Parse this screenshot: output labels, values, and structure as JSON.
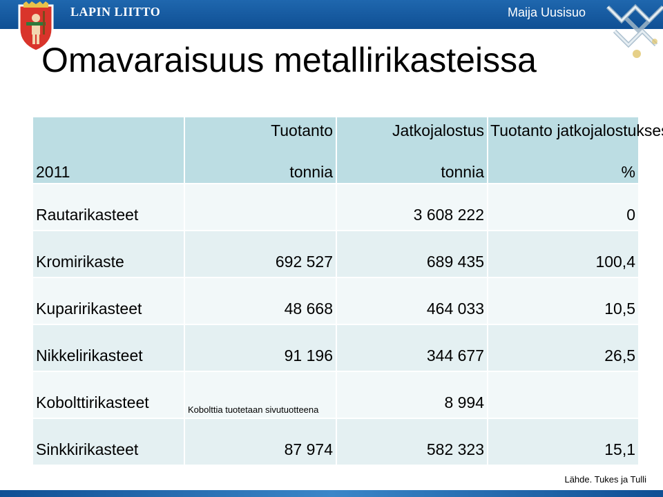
{
  "header": {
    "brand": "LAPIN LIITTO",
    "presenter": "Maija Uusisuo"
  },
  "slide": {
    "title": "Omavaraisuus metallirikasteissa",
    "table": {
      "year": "2011",
      "columns": [
        {
          "title": "Tuotanto",
          "unit": "tonnia"
        },
        {
          "title": "Jatkojalostus",
          "unit": "tonnia"
        },
        {
          "title": "Tuotanto jatkojalostuksesta",
          "unit": "%"
        }
      ],
      "rows": [
        {
          "name": "Rautarikasteet",
          "production": "",
          "processing": "3 608 222",
          "share": "0"
        },
        {
          "name": "Kromirikaste",
          "production": "692 527",
          "processing": "689 435",
          "share": "100,4"
        },
        {
          "name": "Kuparirikasteet",
          "production": "48 668",
          "processing": "464 033",
          "share": "10,5"
        },
        {
          "name": "Nikkelirikasteet",
          "production": "91 196",
          "processing": "344 677",
          "share": "26,5"
        },
        {
          "name": "Kobolttirikasteet",
          "production": "Kobolttia tuotetaan sivutuotteena",
          "processing": "8 994",
          "share": ""
        },
        {
          "name": "Sinkkirikasteet",
          "production": "87 974",
          "processing": "582 323",
          "share": "15,1"
        }
      ]
    },
    "source": "Lähde. Tukes ja Tulli"
  }
}
